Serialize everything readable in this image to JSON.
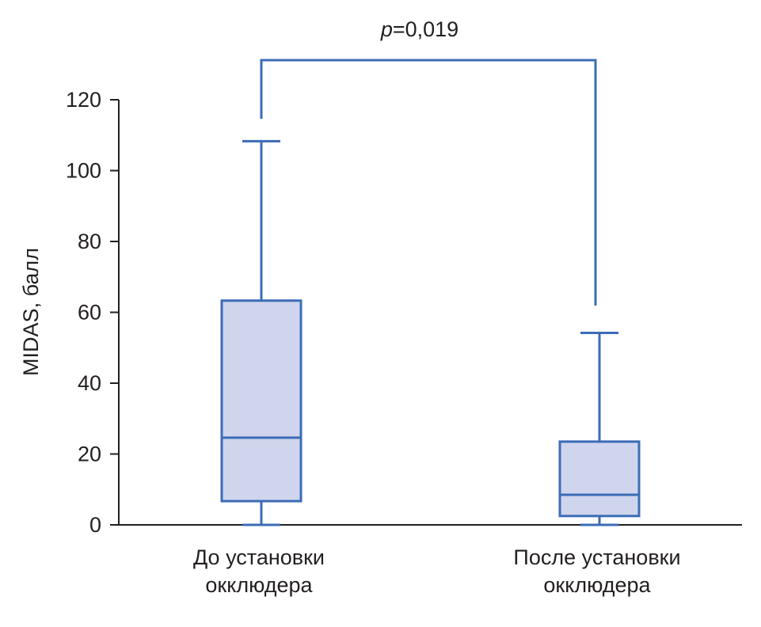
{
  "chart_data": {
    "type": "box",
    "title": "",
    "xlabel": "",
    "ylabel": "MIDAS, балл",
    "ylim": [
      0,
      120
    ],
    "yticks": [
      "0",
      "20",
      "40",
      "60",
      "80",
      "100",
      "120"
    ],
    "categories": [
      [
        "До установки",
        "окклюдера"
      ],
      [
        "После установки",
        "окклюдера"
      ]
    ],
    "boxes": [
      {
        "name": "До установки окклюдера",
        "min": 0,
        "q1": 6.7,
        "median": 24.6,
        "q3": 63.3,
        "max": 108.3
      },
      {
        "name": "После установки окклюдера",
        "min": 0,
        "q1": 2.5,
        "median": 8.5,
        "q3": 23.5,
        "max": 54.2
      }
    ],
    "annotation": {
      "p_label": "p",
      "p_value": "=0,019"
    },
    "grid": false,
    "colors": {
      "stroke": "#3b6cb7",
      "fill": "#cfd5ec",
      "axis": "#231f20"
    }
  }
}
